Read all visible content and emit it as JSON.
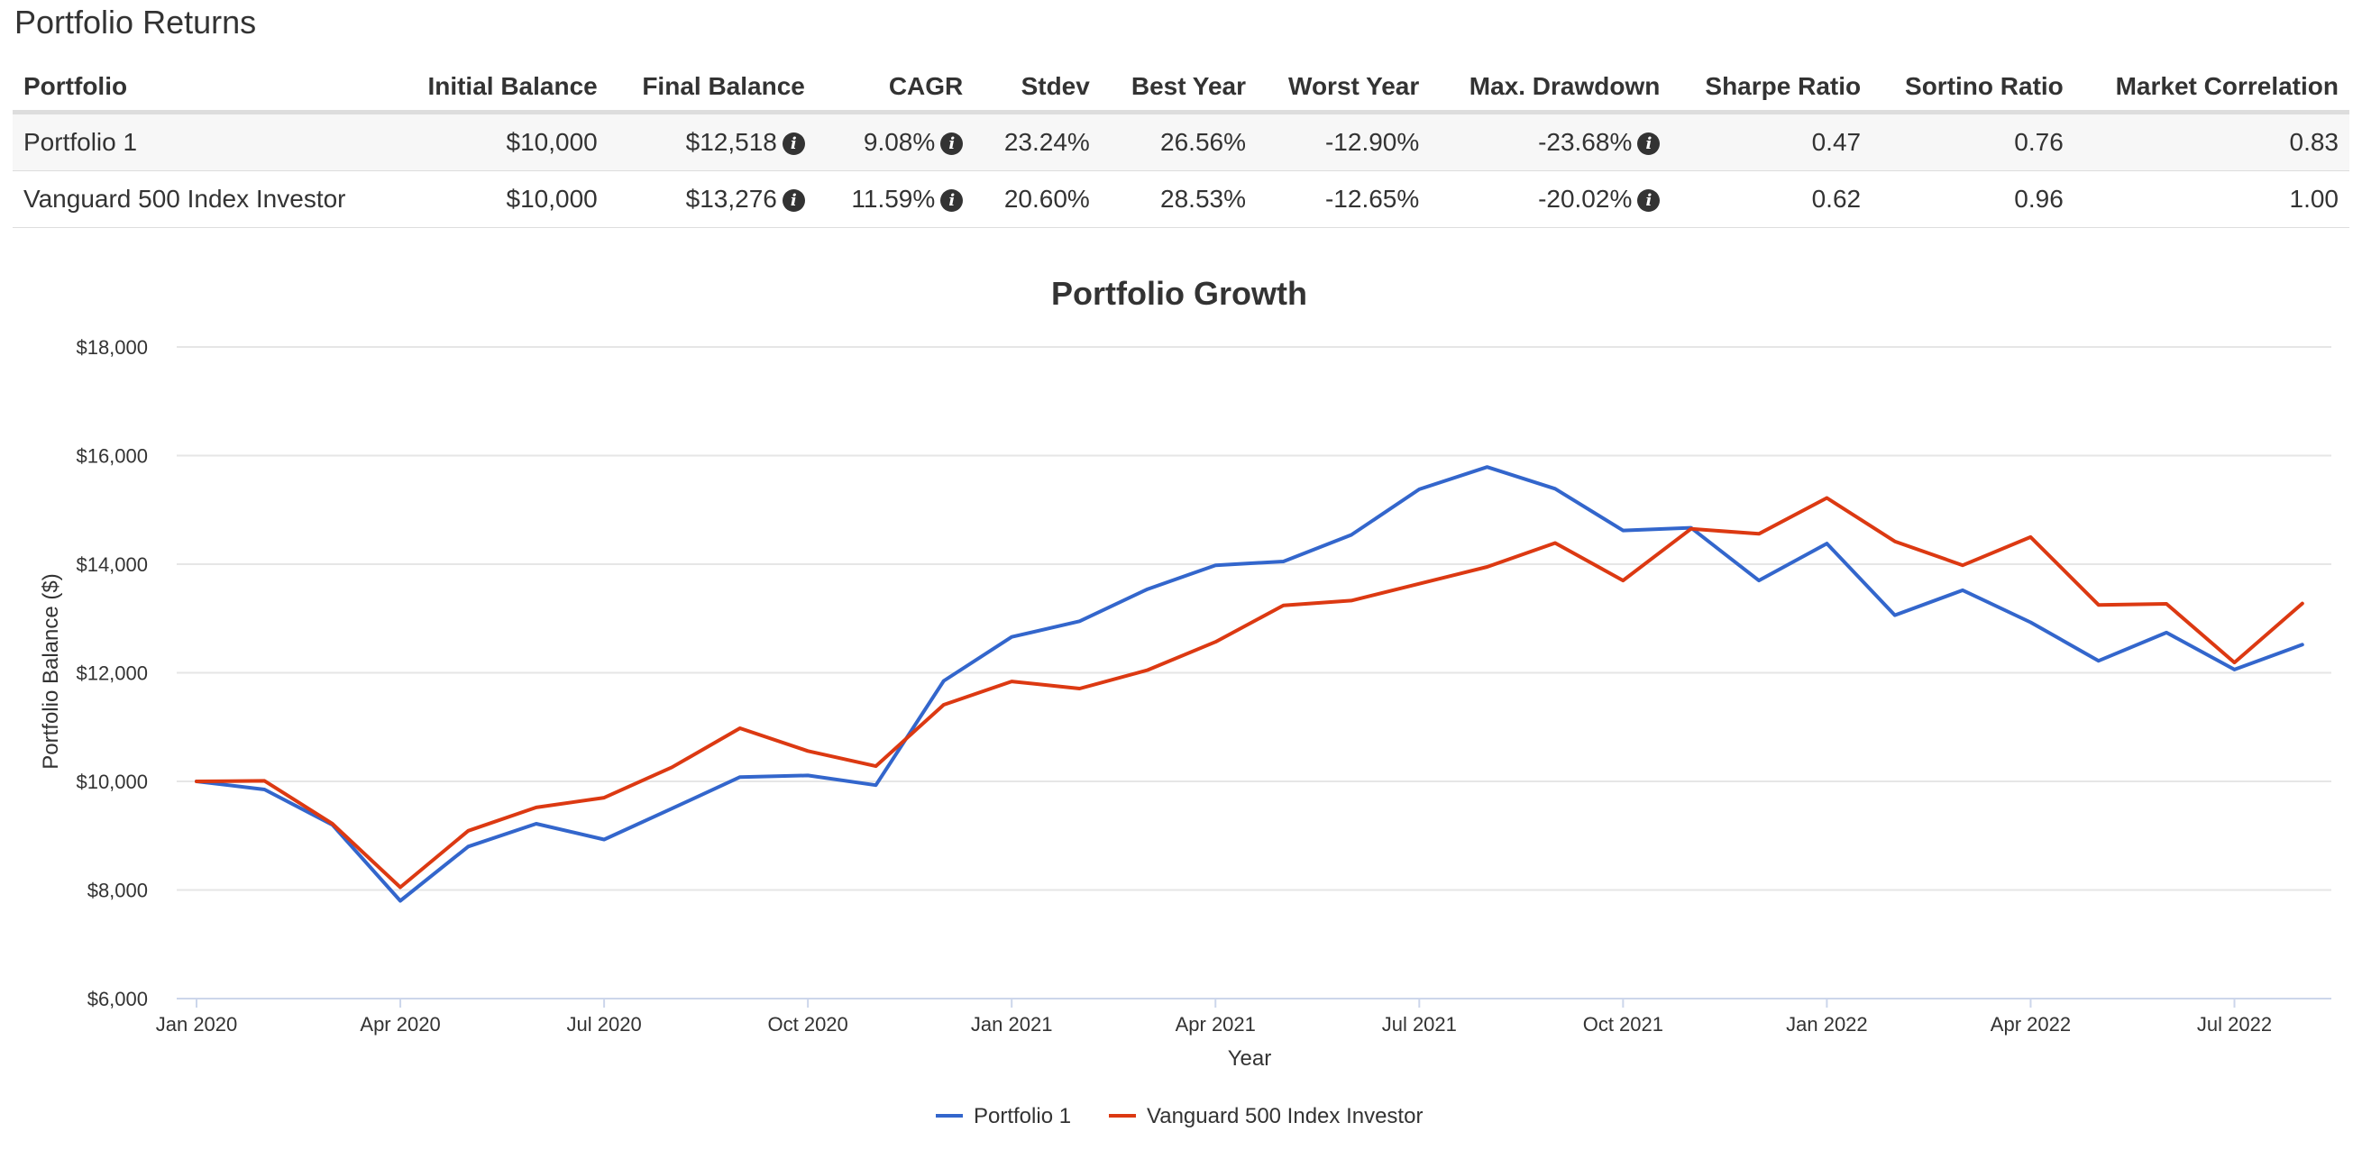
{
  "page": {
    "title": "Portfolio Returns"
  },
  "table": {
    "headers": [
      "Portfolio",
      "Initial Balance",
      "Final Balance",
      "CAGR",
      "Stdev",
      "Best Year",
      "Worst Year",
      "Max. Drawdown",
      "Sharpe Ratio",
      "Sortino Ratio",
      "Market Correlation"
    ],
    "rows": [
      {
        "portfolio": "Portfolio 1",
        "initial_balance": "$10,000",
        "final_balance": "$12,518",
        "cagr": "9.08%",
        "stdev": "23.24%",
        "best_year": "26.56%",
        "worst_year": "-12.90%",
        "max_drawdown": "-23.68%",
        "sharpe": "0.47",
        "sortino": "0.76",
        "market_correlation": "0.83"
      },
      {
        "portfolio": "Vanguard 500 Index Investor",
        "initial_balance": "$10,000",
        "final_balance": "$13,276",
        "cagr": "11.59%",
        "stdev": "20.60%",
        "best_year": "28.53%",
        "worst_year": "-12.65%",
        "max_drawdown": "-20.02%",
        "sharpe": "0.62",
        "sortino": "0.96",
        "market_correlation": "1.00"
      }
    ],
    "info_icon": "info-circle-icon"
  },
  "chart_data": {
    "type": "line",
    "title": "Portfolio Growth",
    "xlabel": "Year",
    "ylabel": "Portfolio Balance ($)",
    "x": [
      "Jan 2020",
      "Feb 2020",
      "Mar 2020",
      "Apr 2020",
      "May 2020",
      "Jun 2020",
      "Jul 2020",
      "Aug 2020",
      "Sep 2020",
      "Oct 2020",
      "Nov 2020",
      "Dec 2020",
      "Jan 2021",
      "Feb 2021",
      "Mar 2021",
      "Apr 2021",
      "May 2021",
      "Jun 2021",
      "Jul 2021",
      "Aug 2021",
      "Sep 2021",
      "Oct 2021",
      "Nov 2021",
      "Dec 2021",
      "Jan 2022",
      "Feb 2022",
      "Mar 2022",
      "Apr 2022",
      "May 2022",
      "Jun 2022",
      "Jul 2022",
      "Aug 2022"
    ],
    "xtick_labels": [
      "Jan 2020",
      "Apr 2020",
      "Jul 2020",
      "Oct 2020",
      "Jan 2021",
      "Apr 2021",
      "Jul 2021",
      "Oct 2021",
      "Jan 2022",
      "Apr 2022",
      "Jul 2022"
    ],
    "yticks": [
      6000,
      8000,
      10000,
      12000,
      14000,
      16000,
      18000
    ],
    "ytick_labels": [
      "$6,000",
      "$8,000",
      "$10,000",
      "$12,000",
      "$14,000",
      "$16,000",
      "$18,000"
    ],
    "ylim": [
      6000,
      18000
    ],
    "grid": true,
    "legend_position": "bottom-center",
    "series": [
      {
        "name": "Portfolio 1",
        "color": "#3366cc",
        "values": [
          10000,
          9850,
          9200,
          7800,
          8800,
          9220,
          8930,
          9500,
          10080,
          10110,
          9930,
          11850,
          12660,
          12950,
          13540,
          13980,
          14050,
          14540,
          15380,
          15790,
          15390,
          14620,
          14670,
          13700,
          14380,
          13060,
          13520,
          12930,
          12220,
          12740,
          12060,
          12518
        ]
      },
      {
        "name": "Vanguard 500 Index Investor",
        "color": "#dc3912",
        "values": [
          10000,
          10010,
          9220,
          8050,
          9090,
          9520,
          9700,
          10260,
          10980,
          10560,
          10280,
          11410,
          11840,
          11710,
          12050,
          12570,
          13240,
          13330,
          13640,
          13950,
          14390,
          13700,
          14650,
          14560,
          15220,
          14420,
          13980,
          14500,
          13250,
          13270,
          12190,
          13276
        ]
      }
    ]
  }
}
